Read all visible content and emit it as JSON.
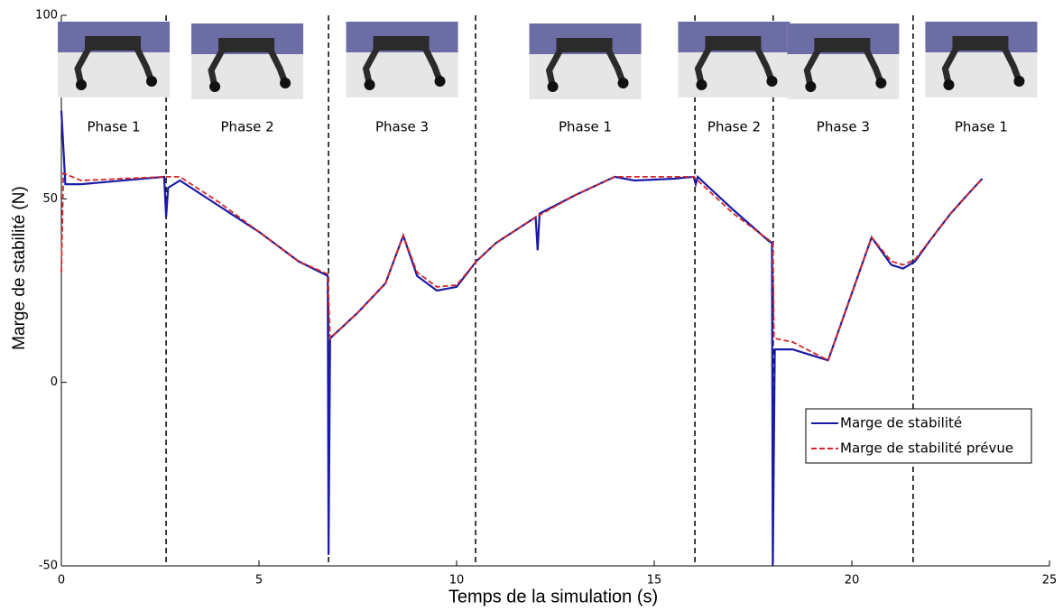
{
  "chart_data": {
    "type": "line",
    "xlabel": "Temps de la simulation (s)",
    "ylabel": "Marge de stabilité (N)",
    "xlim": [
      0,
      25
    ],
    "xticks": [
      0,
      5,
      10,
      15,
      20,
      25
    ],
    "ylim": [
      -50,
      100
    ],
    "yticks": [
      -50,
      0,
      50,
      100
    ],
    "legend": "lower right",
    "phase_boundaries": [
      2.65,
      6.76,
      10.48,
      16.03,
      18.01,
      21.55
    ],
    "phases": [
      "Phase 1",
      "Phase 2",
      "Phase 3",
      "Phase 1",
      "Phase 2",
      "Phase 3",
      "Phase 1"
    ],
    "series": [
      {
        "name": "Marge de stabilité",
        "color": "#1a1aa6",
        "line_style": "solid",
        "x": [
          0,
          0.1,
          0.5,
          2.6,
          2.65,
          2.7,
          3,
          4,
          5,
          6,
          6.74,
          6.76,
          6.8,
          7.5,
          8.2,
          8.65,
          9,
          9.5,
          10,
          10.5,
          11,
          12,
          12.05,
          12.1,
          13,
          14,
          14.5,
          15.5,
          16,
          16.05,
          16.1,
          17,
          17.9,
          17.98,
          18.0,
          18.05,
          18.5,
          19.4,
          20.5,
          21,
          21.3,
          21.6,
          22,
          22.5,
          23,
          23.3
        ],
        "values": [
          74,
          54,
          54,
          56,
          45,
          53,
          55,
          48,
          41,
          33,
          29,
          -47,
          12,
          19,
          27,
          40,
          29,
          25,
          26,
          33,
          38,
          45,
          36,
          46,
          51,
          56,
          55,
          55.5,
          56,
          54,
          56,
          47,
          38.5,
          38,
          -50,
          9,
          9,
          6,
          39.5,
          32,
          31,
          33,
          39,
          46,
          52,
          55.5
        ]
      },
      {
        "name": "Marge de stabilité prévue",
        "color": "#d62728",
        "line_style": "dashed",
        "x": [
          0,
          0.05,
          0.5,
          2.6,
          3,
          4,
          5,
          6,
          6.74,
          6.8,
          7.5,
          8.2,
          8.65,
          9,
          9.5,
          10,
          10.5,
          11,
          12,
          13,
          14,
          14.5,
          15.5,
          16,
          17,
          18,
          18.03,
          18.5,
          19.4,
          20.5,
          21,
          21.3,
          21.6,
          22,
          22.5,
          23,
          23.3
        ],
        "values": [
          30,
          57,
          55,
          56,
          56,
          49,
          41,
          33,
          29.5,
          12,
          19,
          27,
          40,
          30,
          26,
          26.5,
          33,
          38,
          45,
          51,
          56,
          56,
          56,
          56,
          46,
          38,
          12,
          11,
          6,
          39.5,
          33,
          32,
          33.5,
          39,
          46,
          52,
          55.5
        ]
      }
    ]
  }
}
